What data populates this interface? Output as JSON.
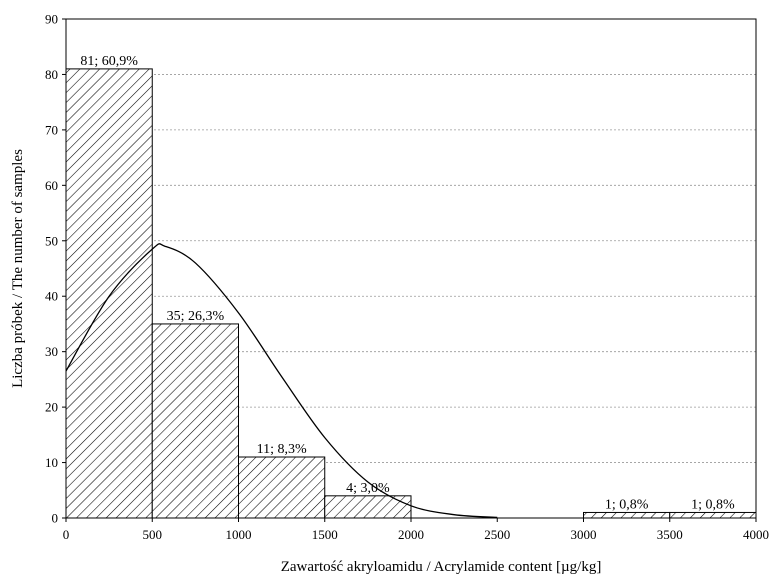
{
  "chart_data": {
    "type": "bar",
    "xlabel": "Zawartość akryloamidu / Acrylamide content [µg/kg]",
    "ylabel": "Liczba próbek / The number of samples",
    "xlim": [
      0,
      4000
    ],
    "ylim": [
      0,
      90
    ],
    "x_ticks": [
      0,
      500,
      1000,
      1500,
      2000,
      2500,
      3000,
      3500,
      4000
    ],
    "y_ticks": [
      0,
      10,
      20,
      30,
      40,
      50,
      60,
      70,
      80,
      90
    ],
    "grid": "horizontal dotted",
    "bins": [
      {
        "x0": 0,
        "x1": 500,
        "value": 81,
        "label": "81; 60,9%"
      },
      {
        "x0": 500,
        "x1": 1000,
        "value": 35,
        "label": "35; 26,3%"
      },
      {
        "x0": 1000,
        "x1": 1500,
        "value": 11,
        "label": "11; 8,3%"
      },
      {
        "x0": 1500,
        "x1": 2000,
        "value": 4,
        "label": "4; 3,0%"
      },
      {
        "x0": 2000,
        "x1": 2500,
        "value": 0,
        "label": ""
      },
      {
        "x0": 2500,
        "x1": 3000,
        "value": 0,
        "label": ""
      },
      {
        "x0": 3000,
        "x1": 3500,
        "value": 1,
        "label": "1; 0,8%"
      },
      {
        "x0": 3500,
        "x1": 4000,
        "value": 1,
        "label": "1; 0,8%"
      }
    ],
    "fitted_curve": {
      "type": "normal",
      "points": [
        [
          0,
          26.5
        ],
        [
          250,
          40
        ],
        [
          500,
          48.5
        ],
        [
          575,
          49
        ],
        [
          750,
          46
        ],
        [
          1000,
          37
        ],
        [
          1250,
          25.5
        ],
        [
          1500,
          14.5
        ],
        [
          1750,
          6.5
        ],
        [
          2000,
          2.2
        ],
        [
          2250,
          0.6
        ],
        [
          2500,
          0.1
        ]
      ]
    },
    "colors": {
      "hatch": "#000000",
      "bar_fill": "#ffffff",
      "curve": "#000000",
      "grid": "#999999"
    }
  }
}
